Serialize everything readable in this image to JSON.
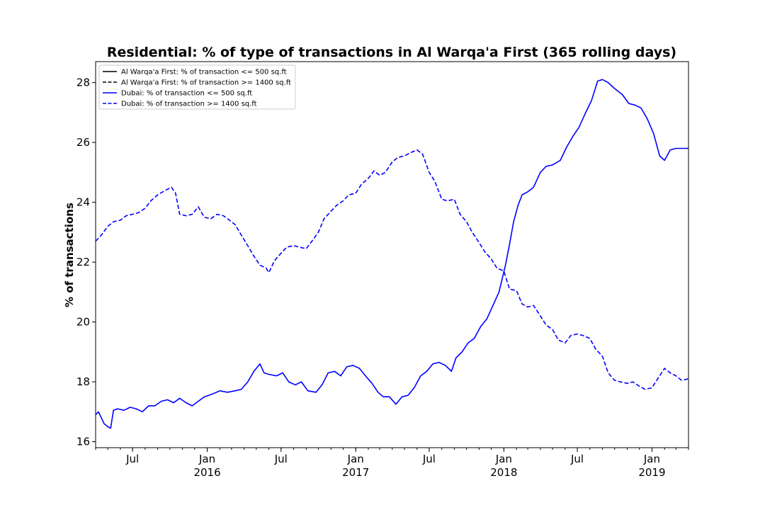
{
  "chart_data": {
    "type": "line",
    "title": "Residential: % of type of transactions in Al Warqa'a First (365 rolling days)",
    "xlabel": "",
    "ylabel": "% of transactions",
    "xlim": [
      "2015-04-01",
      "2019-04-01"
    ],
    "ylim": [
      15.8,
      28.7
    ],
    "yticks": [
      16,
      18,
      20,
      22,
      24,
      26,
      28
    ],
    "xticks": [
      {
        "date": "2015-07-01",
        "label": "Jul",
        "year": ""
      },
      {
        "date": "2016-01-01",
        "label": "Jan",
        "year": "2016"
      },
      {
        "date": "2016-07-01",
        "label": "Jul",
        "year": ""
      },
      {
        "date": "2017-01-01",
        "label": "Jan",
        "year": "2017"
      },
      {
        "date": "2017-07-01",
        "label": "Jul",
        "year": ""
      },
      {
        "date": "2018-01-01",
        "label": "Jan",
        "year": "2018"
      },
      {
        "date": "2018-07-01",
        "label": "Jul",
        "year": ""
      },
      {
        "date": "2019-01-01",
        "label": "Jan",
        "year": "2019"
      }
    ],
    "legend_position": "top-left",
    "grid": false,
    "series": [
      {
        "name": "Al Warqa'a First: % of transaction <= 500 sq.ft",
        "color": "#000000",
        "dash": "solid",
        "points": []
      },
      {
        "name": "Al Warqa'a First: % of transaction >= 1400 sq.ft",
        "color": "#000000",
        "dash": "dashed",
        "points": []
      },
      {
        "name": "Dubai: % of transaction <= 500 sq.ft",
        "color": "#0000ff",
        "dash": "solid",
        "points": [
          [
            "2015-04-01",
            16.9
          ],
          [
            "2015-04-08",
            17.0
          ],
          [
            "2015-04-15",
            16.8
          ],
          [
            "2015-04-22",
            16.6
          ],
          [
            "2015-05-01",
            16.5
          ],
          [
            "2015-05-08",
            16.45
          ],
          [
            "2015-05-15",
            17.05
          ],
          [
            "2015-05-25",
            17.1
          ],
          [
            "2015-06-10",
            17.05
          ],
          [
            "2015-06-25",
            17.15
          ],
          [
            "2015-07-10",
            17.1
          ],
          [
            "2015-07-25",
            17.0
          ],
          [
            "2015-08-10",
            17.2
          ],
          [
            "2015-08-25",
            17.2
          ],
          [
            "2015-09-10",
            17.35
          ],
          [
            "2015-09-25",
            17.4
          ],
          [
            "2015-10-10",
            17.3
          ],
          [
            "2015-10-25",
            17.45
          ],
          [
            "2015-11-10",
            17.3
          ],
          [
            "2015-11-25",
            17.2
          ],
          [
            "2015-12-10",
            17.35
          ],
          [
            "2015-12-25",
            17.5
          ],
          [
            "2016-01-15",
            17.6
          ],
          [
            "2016-02-01",
            17.7
          ],
          [
            "2016-02-20",
            17.65
          ],
          [
            "2016-03-10",
            17.7
          ],
          [
            "2016-03-25",
            17.75
          ],
          [
            "2016-04-10",
            18.0
          ],
          [
            "2016-04-25",
            18.35
          ],
          [
            "2016-05-10",
            18.6
          ],
          [
            "2016-05-20",
            18.3
          ],
          [
            "2016-06-01",
            18.25
          ],
          [
            "2016-06-20",
            18.2
          ],
          [
            "2016-07-05",
            18.3
          ],
          [
            "2016-07-20",
            18.0
          ],
          [
            "2016-08-05",
            17.9
          ],
          [
            "2016-08-20",
            18.0
          ],
          [
            "2016-09-05",
            17.7
          ],
          [
            "2016-09-25",
            17.65
          ],
          [
            "2016-10-10",
            17.9
          ],
          [
            "2016-10-25",
            18.3
          ],
          [
            "2016-11-10",
            18.35
          ],
          [
            "2016-11-25",
            18.2
          ],
          [
            "2016-12-10",
            18.5
          ],
          [
            "2016-12-25",
            18.55
          ],
          [
            "2017-01-10",
            18.45
          ],
          [
            "2017-01-25",
            18.2
          ],
          [
            "2017-02-10",
            17.95
          ],
          [
            "2017-02-25",
            17.65
          ],
          [
            "2017-03-10",
            17.5
          ],
          [
            "2017-03-25",
            17.5
          ],
          [
            "2017-04-10",
            17.25
          ],
          [
            "2017-04-25",
            17.5
          ],
          [
            "2017-05-10",
            17.55
          ],
          [
            "2017-05-25",
            17.8
          ],
          [
            "2017-06-10",
            18.2
          ],
          [
            "2017-06-25",
            18.35
          ],
          [
            "2017-07-10",
            18.6
          ],
          [
            "2017-07-25",
            18.65
          ],
          [
            "2017-08-10",
            18.55
          ],
          [
            "2017-08-25",
            18.35
          ],
          [
            "2017-09-05",
            18.8
          ],
          [
            "2017-09-20",
            19.0
          ],
          [
            "2017-10-05",
            19.3
          ],
          [
            "2017-10-20",
            19.45
          ],
          [
            "2017-11-05",
            19.85
          ],
          [
            "2017-11-20",
            20.1
          ],
          [
            "2017-12-05",
            20.55
          ],
          [
            "2017-12-20",
            21.0
          ],
          [
            "2018-01-05",
            21.9
          ],
          [
            "2018-01-15",
            22.6
          ],
          [
            "2018-01-25",
            23.35
          ],
          [
            "2018-02-05",
            23.9
          ],
          [
            "2018-02-15",
            24.25
          ],
          [
            "2018-03-01",
            24.35
          ],
          [
            "2018-03-15",
            24.5
          ],
          [
            "2018-04-01",
            25.0
          ],
          [
            "2018-04-15",
            25.2
          ],
          [
            "2018-05-01",
            25.25
          ],
          [
            "2018-05-20",
            25.4
          ],
          [
            "2018-06-05",
            25.85
          ],
          [
            "2018-06-20",
            26.2
          ],
          [
            "2018-07-05",
            26.5
          ],
          [
            "2018-07-20",
            26.95
          ],
          [
            "2018-08-05",
            27.4
          ],
          [
            "2018-08-20",
            28.05
          ],
          [
            "2018-09-01",
            28.1
          ],
          [
            "2018-09-15",
            28.0
          ],
          [
            "2018-10-01",
            27.8
          ],
          [
            "2018-10-20",
            27.6
          ],
          [
            "2018-11-05",
            27.3
          ],
          [
            "2018-11-20",
            27.25
          ],
          [
            "2018-12-05",
            27.15
          ],
          [
            "2018-12-20",
            26.8
          ],
          [
            "2019-01-05",
            26.3
          ],
          [
            "2019-01-20",
            25.55
          ],
          [
            "2019-02-01",
            25.4
          ],
          [
            "2019-02-15",
            25.75
          ],
          [
            "2019-03-01",
            25.8
          ],
          [
            "2019-03-20",
            25.8
          ],
          [
            "2019-04-01",
            25.8
          ]
        ]
      },
      {
        "name": "Dubai: % of transaction >= 1400 sq.ft",
        "color": "#0000ff",
        "dash": "dashed",
        "points": [
          [
            "2015-04-01",
            22.7
          ],
          [
            "2015-04-15",
            22.9
          ],
          [
            "2015-05-01",
            23.2
          ],
          [
            "2015-05-15",
            23.35
          ],
          [
            "2015-06-01",
            23.4
          ],
          [
            "2015-06-15",
            23.55
          ],
          [
            "2015-07-01",
            23.6
          ],
          [
            "2015-07-15",
            23.65
          ],
          [
            "2015-08-01",
            23.8
          ],
          [
            "2015-08-15",
            24.05
          ],
          [
            "2015-09-01",
            24.25
          ],
          [
            "2015-09-20",
            24.4
          ],
          [
            "2015-10-05",
            24.5
          ],
          [
            "2015-10-15",
            24.3
          ],
          [
            "2015-10-25",
            23.6
          ],
          [
            "2015-11-10",
            23.55
          ],
          [
            "2015-11-25",
            23.6
          ],
          [
            "2015-12-10",
            23.85
          ],
          [
            "2015-12-25",
            23.5
          ],
          [
            "2016-01-10",
            23.45
          ],
          [
            "2016-01-25",
            23.6
          ],
          [
            "2016-02-10",
            23.55
          ],
          [
            "2016-02-25",
            23.4
          ],
          [
            "2016-03-10",
            23.25
          ],
          [
            "2016-03-25",
            22.9
          ],
          [
            "2016-04-10",
            22.55
          ],
          [
            "2016-04-25",
            22.2
          ],
          [
            "2016-05-10",
            21.9
          ],
          [
            "2016-05-25",
            21.8
          ],
          [
            "2016-06-01",
            21.65
          ],
          [
            "2016-06-15",
            22.05
          ],
          [
            "2016-07-01",
            22.3
          ],
          [
            "2016-07-15",
            22.5
          ],
          [
            "2016-08-01",
            22.55
          ],
          [
            "2016-08-15",
            22.5
          ],
          [
            "2016-09-01",
            22.45
          ],
          [
            "2016-09-15",
            22.7
          ],
          [
            "2016-10-01",
            23.0
          ],
          [
            "2016-10-15",
            23.45
          ],
          [
            "2016-11-01",
            23.7
          ],
          [
            "2016-11-15",
            23.9
          ],
          [
            "2016-12-01",
            24.05
          ],
          [
            "2016-12-15",
            24.25
          ],
          [
            "2017-01-01",
            24.3
          ],
          [
            "2017-01-15",
            24.6
          ],
          [
            "2017-02-01",
            24.8
          ],
          [
            "2017-02-15",
            25.05
          ],
          [
            "2017-03-01",
            24.9
          ],
          [
            "2017-03-15",
            25.0
          ],
          [
            "2017-04-01",
            25.35
          ],
          [
            "2017-04-15",
            25.5
          ],
          [
            "2017-05-01",
            25.55
          ],
          [
            "2017-05-15",
            25.65
          ],
          [
            "2017-06-01",
            25.75
          ],
          [
            "2017-06-15",
            25.6
          ],
          [
            "2017-07-01",
            25.0
          ],
          [
            "2017-07-15",
            24.7
          ],
          [
            "2017-08-01",
            24.1
          ],
          [
            "2017-08-15",
            24.05
          ],
          [
            "2017-09-01",
            24.1
          ],
          [
            "2017-09-15",
            23.6
          ],
          [
            "2017-10-01",
            23.35
          ],
          [
            "2017-10-15",
            23.0
          ],
          [
            "2017-11-01",
            22.65
          ],
          [
            "2017-11-15",
            22.35
          ],
          [
            "2017-12-01",
            22.1
          ],
          [
            "2017-12-15",
            21.8
          ],
          [
            "2018-01-01",
            21.7
          ],
          [
            "2018-01-15",
            21.1
          ],
          [
            "2018-02-01",
            21.05
          ],
          [
            "2018-02-15",
            20.6
          ],
          [
            "2018-03-01",
            20.5
          ],
          [
            "2018-03-15",
            20.55
          ],
          [
            "2018-04-01",
            20.2
          ],
          [
            "2018-04-15",
            19.9
          ],
          [
            "2018-05-01",
            19.75
          ],
          [
            "2018-05-15",
            19.4
          ],
          [
            "2018-06-01",
            19.3
          ],
          [
            "2018-06-15",
            19.55
          ],
          [
            "2018-07-01",
            19.6
          ],
          [
            "2018-07-15",
            19.55
          ],
          [
            "2018-08-01",
            19.45
          ],
          [
            "2018-08-15",
            19.1
          ],
          [
            "2018-09-01",
            18.85
          ],
          [
            "2018-09-15",
            18.3
          ],
          [
            "2018-10-01",
            18.05
          ],
          [
            "2018-10-15",
            18.0
          ],
          [
            "2018-11-01",
            17.95
          ],
          [
            "2018-11-15",
            18.0
          ],
          [
            "2018-12-01",
            17.85
          ],
          [
            "2018-12-15",
            17.75
          ],
          [
            "2019-01-01",
            17.8
          ],
          [
            "2019-01-15",
            18.1
          ],
          [
            "2019-02-01",
            18.45
          ],
          [
            "2019-02-15",
            18.3
          ],
          [
            "2019-03-01",
            18.2
          ],
          [
            "2019-03-15",
            18.05
          ],
          [
            "2019-04-01",
            18.1
          ]
        ]
      }
    ]
  }
}
